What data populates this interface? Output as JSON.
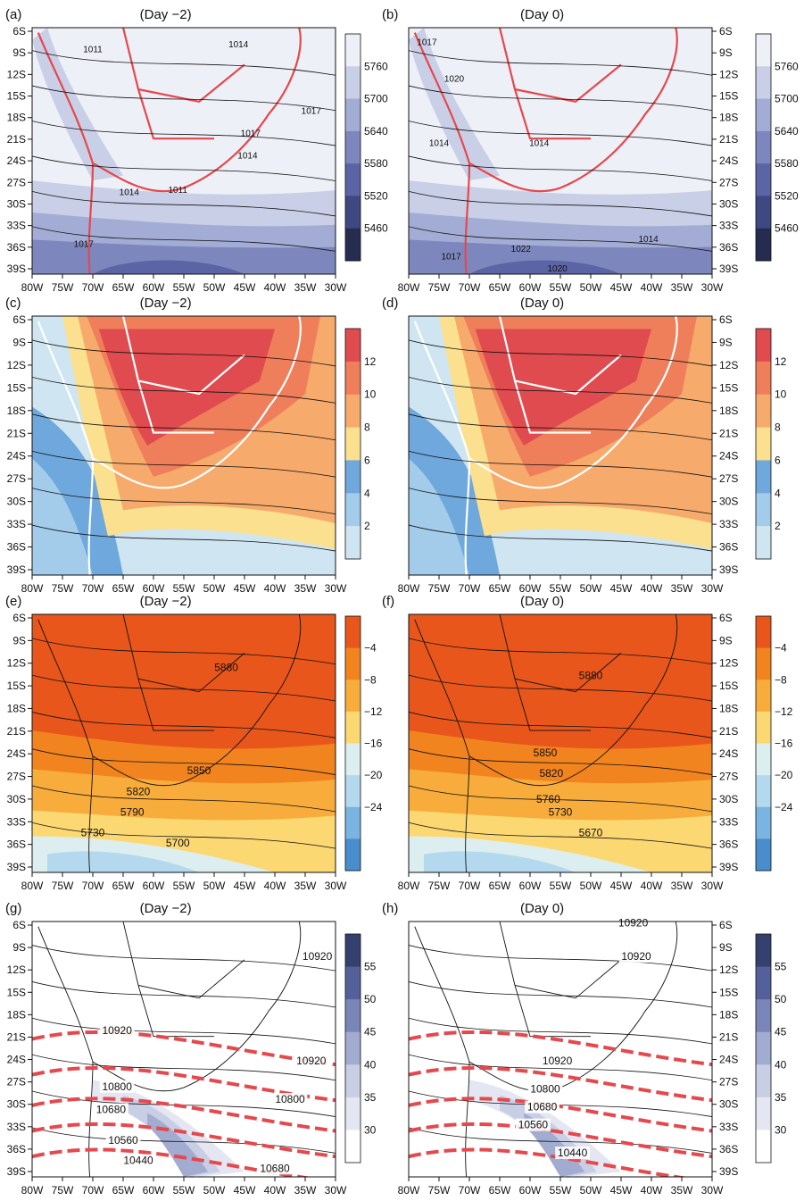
{
  "chart_data": [
    {
      "type": "heatmap",
      "panel": "(a)",
      "title": "(Day −2)",
      "lon": [
        "80W",
        "75W",
        "70W",
        "65W",
        "60W",
        "55W",
        "50W",
        "45W",
        "40W",
        "35W",
        "30W"
      ],
      "lat": [
        "6S",
        "9S",
        "12S",
        "15S",
        "18S",
        "21S",
        "24S",
        "27S",
        "30S",
        "33S",
        "36S",
        "39S"
      ],
      "colorbar": [
        "5760",
        "5700",
        "5640",
        "5580",
        "5520",
        "5460"
      ],
      "colors": [
        "#eef0f8",
        "#c9cfe6",
        "#a3acd4",
        "#7d87bd",
        "#5b64a4",
        "#3f4880",
        "#262c50"
      ],
      "contour_labels": [
        "1011",
        "1014",
        "1017",
        "1017",
        "1014",
        "1014",
        "1011",
        "1017"
      ]
    },
    {
      "type": "heatmap",
      "panel": "(b)",
      "title": "(Day 0)",
      "lon": [
        "80W",
        "75W",
        "70W",
        "65W",
        "60W",
        "55W",
        "50W",
        "45W",
        "40W",
        "35W",
        "30W"
      ],
      "lat": [
        "6S",
        "9S",
        "12S",
        "15S",
        "18S",
        "21S",
        "24S",
        "27S",
        "30S",
        "33S",
        "36S",
        "39S"
      ],
      "colorbar": [
        "5760",
        "5700",
        "5640",
        "5580",
        "5520",
        "5460"
      ],
      "colors": [
        "#eef0f8",
        "#c9cfe6",
        "#a3acd4",
        "#7d87bd",
        "#5b64a4",
        "#3f4880",
        "#262c50"
      ],
      "contour_labels": [
        "1017",
        "1020",
        "1014",
        "1014",
        "1014",
        "1022",
        "1017",
        "1020"
      ]
    },
    {
      "type": "heatmap",
      "panel": "(c)",
      "title": "(Day −2)",
      "lon": [
        "80W",
        "75W",
        "70W",
        "65W",
        "60W",
        "55W",
        "50W",
        "45W",
        "40W",
        "35W",
        "30W"
      ],
      "lat": [
        "6S",
        "9S",
        "12S",
        "15S",
        "18S",
        "21S",
        "24S",
        "27S",
        "30S",
        "33S",
        "36S",
        "39S"
      ],
      "colorbar": [
        "12",
        "10",
        "8",
        "6",
        "4",
        "2"
      ],
      "colors": [
        "#e04b4f",
        "#ef7e5a",
        "#f6aa6b",
        "#fbe08f",
        "#6fa8dc",
        "#a3cbea",
        "#cfe6f2"
      ],
      "contour_labels": []
    },
    {
      "type": "heatmap",
      "panel": "(d)",
      "title": "(Day 0)",
      "lon": [
        "80W",
        "75W",
        "70W",
        "65W",
        "60W",
        "55W",
        "50W",
        "45W",
        "40W",
        "35W",
        "30W"
      ],
      "lat": [
        "6S",
        "9S",
        "12S",
        "15S",
        "18S",
        "21S",
        "24S",
        "27S",
        "30S",
        "33S",
        "36S",
        "39S"
      ],
      "colorbar": [
        "12",
        "10",
        "8",
        "6",
        "4",
        "2"
      ],
      "colors": [
        "#e04b4f",
        "#ef7e5a",
        "#f6aa6b",
        "#fbe08f",
        "#6fa8dc",
        "#a3cbea",
        "#cfe6f2"
      ],
      "contour_labels": []
    },
    {
      "type": "heatmap",
      "panel": "(e)",
      "title": "(Day −2)",
      "lon": [
        "80W",
        "75W",
        "70W",
        "65W",
        "60W",
        "55W",
        "50W",
        "45W",
        "40W",
        "35W",
        "30W"
      ],
      "lat": [
        "6S",
        "9S",
        "12S",
        "15S",
        "18S",
        "21S",
        "24S",
        "27S",
        "30S",
        "33S",
        "36S",
        "39S"
      ],
      "colorbar": [
        "−4",
        "−8",
        "−12",
        "−16",
        "−20",
        "−24"
      ],
      "colors": [
        "#e8561c",
        "#f2841f",
        "#f7ac3c",
        "#fcd873",
        "#dceef0",
        "#b4d9ee",
        "#7ab4e0",
        "#4a8dcc"
      ],
      "contour_labels": [
        "5880",
        "5850",
        "5820",
        "5790",
        "5730",
        "5700"
      ]
    },
    {
      "type": "heatmap",
      "panel": "(f)",
      "title": "(Day 0)",
      "lon": [
        "80W",
        "75W",
        "70W",
        "65W",
        "60W",
        "55W",
        "50W",
        "45W",
        "40W",
        "35W",
        "30W"
      ],
      "lat": [
        "6S",
        "9S",
        "12S",
        "15S",
        "18S",
        "21S",
        "24S",
        "27S",
        "30S",
        "33S",
        "36S",
        "39S"
      ],
      "colorbar": [
        "−4",
        "−8",
        "−12",
        "−16",
        "−20",
        "−24"
      ],
      "colors": [
        "#e8561c",
        "#f2841f",
        "#f7ac3c",
        "#fcd873",
        "#dceef0",
        "#b4d9ee",
        "#7ab4e0",
        "#4a8dcc"
      ],
      "contour_labels": [
        "5880",
        "5850",
        "5820",
        "5760",
        "5730",
        "5670"
      ]
    },
    {
      "type": "heatmap",
      "panel": "(g)",
      "title": "(Day −2)",
      "lon": [
        "80W",
        "75W",
        "70W",
        "65W",
        "60W",
        "55W",
        "50W",
        "45W",
        "40W",
        "35W",
        "30W"
      ],
      "lat": [
        "6S",
        "9S",
        "12S",
        "15S",
        "18S",
        "21S",
        "24S",
        "27S",
        "30S",
        "33S",
        "36S",
        "39S"
      ],
      "colorbar": [
        "55",
        "50",
        "45",
        "40",
        "35",
        "30"
      ],
      "colors": [
        "#34406e",
        "#54609a",
        "#7a85b8",
        "#a2abd0",
        "#c8cee4",
        "#e4e7f2",
        "#ffffff"
      ],
      "contour_labels": [
        "10920",
        "10920",
        "10920",
        "10800",
        "10800",
        "10680",
        "10560",
        "10440",
        "10680"
      ]
    },
    {
      "type": "heatmap",
      "panel": "(h)",
      "title": "(Day 0)",
      "lon": [
        "80W",
        "75W",
        "70W",
        "65W",
        "60W",
        "55W",
        "50W",
        "45W",
        "40W",
        "35W",
        "30W"
      ],
      "lat": [
        "6S",
        "9S",
        "12S",
        "15S",
        "18S",
        "21S",
        "24S",
        "27S",
        "30S",
        "33S",
        "36S",
        "39S"
      ],
      "colorbar": [
        "55",
        "50",
        "45",
        "40",
        "35",
        "30"
      ],
      "colors": [
        "#34406e",
        "#54609a",
        "#7a85b8",
        "#a2abd0",
        "#c8cee4",
        "#e4e7f2",
        "#ffffff"
      ],
      "contour_labels": [
        "10920",
        "10920",
        "10920",
        "10800",
        "10680",
        "10560",
        "10440"
      ]
    }
  ]
}
